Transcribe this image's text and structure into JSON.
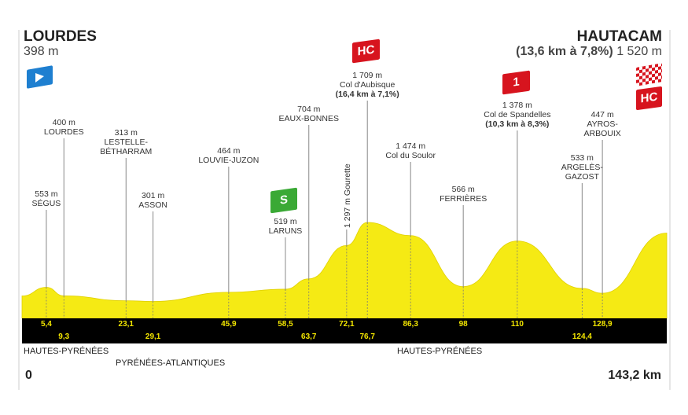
{
  "start": {
    "name": "LOURDES",
    "elevation": "398 m"
  },
  "finish": {
    "name": "HAUTACAM",
    "climb": "(13,6 km à 7,8%)",
    "elevation": "1 520 m"
  },
  "badges": {
    "aubisque": "HC",
    "spandelles": "1",
    "finish": "HC",
    "sprint": "S"
  },
  "colors": {
    "profile": "#f5ea14",
    "band": "#000000",
    "km_text": "#f3e600",
    "climb_badge": "#d7141e",
    "sprint_badge": "#3aa935",
    "start_flag": "#1e7fd0"
  },
  "departments": [
    "HAUTES-PYRÉNÉES",
    "PYRÉNÉES-ATLANTIQUES",
    "HAUTES-PYRÉNÉES"
  ],
  "axis": {
    "start_label": "0",
    "end_label": "143,2 km"
  },
  "chart_data": {
    "type": "area",
    "xlabel": "",
    "ylabel": "",
    "xlim": [
      0,
      143.2
    ],
    "points": [
      {
        "km": 0,
        "elevation": 398
      },
      {
        "km": 5.4,
        "elevation": 553
      },
      {
        "km": 9.3,
        "elevation": 400
      },
      {
        "km": 23.1,
        "elevation": 313
      },
      {
        "km": 29.1,
        "elevation": 301
      },
      {
        "km": 45.9,
        "elevation": 464
      },
      {
        "km": 58.5,
        "elevation": 519
      },
      {
        "km": 63.7,
        "elevation": 704
      },
      {
        "km": 72.1,
        "elevation": 1297
      },
      {
        "km": 76.7,
        "elevation": 1709
      },
      {
        "km": 86.3,
        "elevation": 1474
      },
      {
        "km": 98,
        "elevation": 566
      },
      {
        "km": 110,
        "elevation": 1378
      },
      {
        "km": 124.4,
        "elevation": 533
      },
      {
        "km": 128.9,
        "elevation": 447
      },
      {
        "km": 143.2,
        "elevation": 1520
      }
    ],
    "waypoints": [
      {
        "km": "5,4",
        "elev": "553 m",
        "name": "SÉGUS"
      },
      {
        "km": "9,3",
        "elev": "400 m",
        "name": "LOURDES"
      },
      {
        "km": "23,1",
        "elev": "313 m",
        "name": "LESTELLE-\nBÉTHARRAM"
      },
      {
        "km": "29,1",
        "elev": "301 m",
        "name": "ASSON"
      },
      {
        "km": "45,9",
        "elev": "464 m",
        "name": "LOUVIE-JUZON"
      },
      {
        "km": "58,5",
        "elev": "519 m",
        "name": "LARUNS"
      },
      {
        "km": "63,7",
        "elev": "704 m",
        "name": "EAUX-BONNES"
      },
      {
        "km": "72,1",
        "elev": "1 297 m",
        "name": "Gourette"
      },
      {
        "km": "76,7",
        "elev": "1 709 m",
        "name": "Col d'Aubisque",
        "climb": "(16,4 km à 7,1%)"
      },
      {
        "km": "86,3",
        "elev": "1 474 m",
        "name": "Col du Soulor"
      },
      {
        "km": "98",
        "elev": "566 m",
        "name": "FERRIÈRES"
      },
      {
        "km": "110",
        "elev": "1 378 m",
        "name": "Col de Spandelles",
        "climb": "(10,3 km à 8,3%)"
      },
      {
        "km": "124,4",
        "elev": "533 m",
        "name": "ARGELÈS-\nGAZOST"
      },
      {
        "km": "128,9",
        "elev": "447 m",
        "name": "AYROS-\nARBOUIX"
      }
    ]
  }
}
